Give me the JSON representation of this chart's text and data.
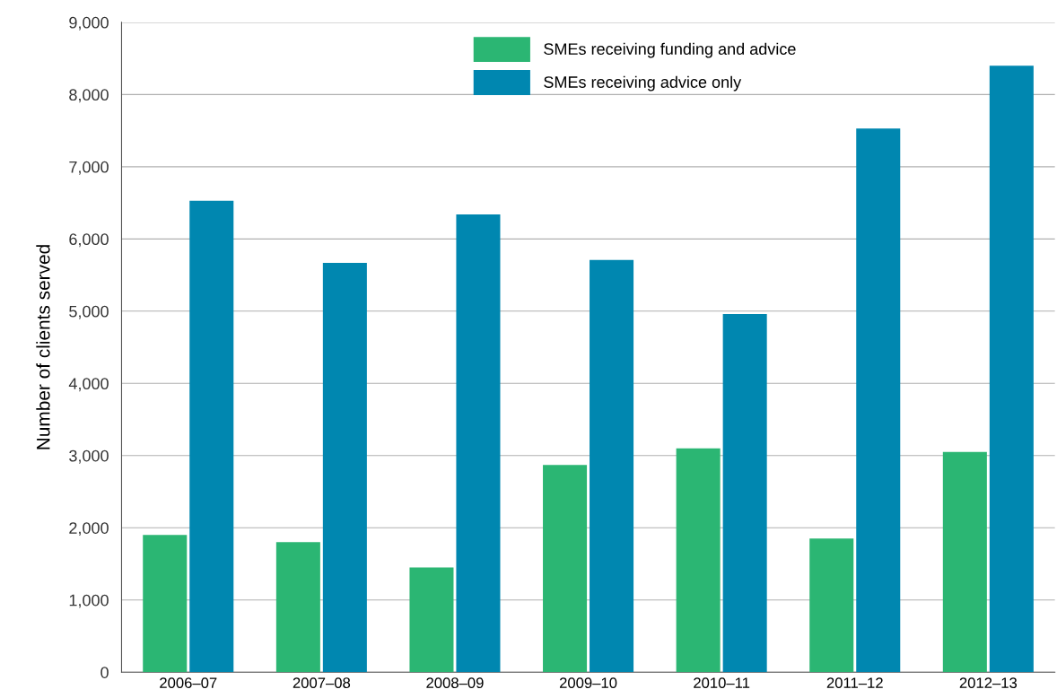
{
  "chart_data": {
    "type": "bar",
    "ylabel": "Number of clients served",
    "categories": [
      "2006–07",
      "2007–08",
      "2008–09",
      "2009–10",
      "2010–11",
      "2011–12",
      "2012–13"
    ],
    "series": [
      {
        "name": "SMEs receiving funding and advice",
        "color": "#2bb673",
        "values": [
          1900,
          1800,
          1450,
          2870,
          3100,
          1850,
          3050
        ]
      },
      {
        "name": "SMEs receiving advice only",
        "color": "#0087b0",
        "values": [
          6530,
          5670,
          6340,
          5710,
          4960,
          7530,
          8400
        ]
      }
    ],
    "ylim": [
      0,
      9000
    ],
    "yticks": [
      {
        "value": 0,
        "label": "0"
      },
      {
        "value": 1000,
        "label": "1,000"
      },
      {
        "value": 2000,
        "label": "2,000"
      },
      {
        "value": 3000,
        "label": "3,000"
      },
      {
        "value": 4000,
        "label": "4,000"
      },
      {
        "value": 5000,
        "label": "5,000"
      },
      {
        "value": 6000,
        "label": "6,000"
      },
      {
        "value": 7000,
        "label": "7,000"
      },
      {
        "value": 8000,
        "label": "8,000"
      },
      {
        "value": 9000,
        "label": "9,000"
      }
    ],
    "grid": "y",
    "legend": "top"
  }
}
